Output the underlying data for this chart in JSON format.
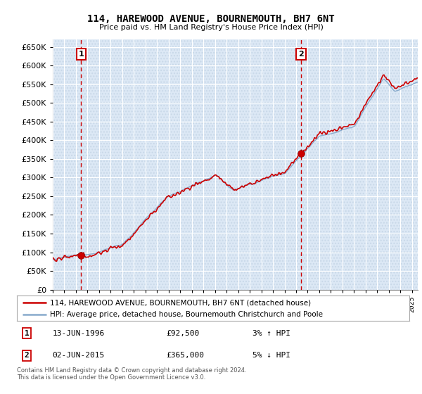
{
  "title": "114, HAREWOOD AVENUE, BOURNEMOUTH, BH7 6NT",
  "subtitle": "Price paid vs. HM Land Registry's House Price Index (HPI)",
  "ytick_values": [
    0,
    50000,
    100000,
    150000,
    200000,
    250000,
    300000,
    350000,
    400000,
    450000,
    500000,
    550000,
    600000,
    650000
  ],
  "ylim": [
    0,
    670000
  ],
  "xlim": [
    1994.0,
    2025.5
  ],
  "sale1": {
    "date_idx": 1996.45,
    "price": 92500,
    "label": "1"
  },
  "sale2": {
    "date_idx": 2015.42,
    "price": 365000,
    "label": "2"
  },
  "legend_line1": "114, HAREWOOD AVENUE, BOURNEMOUTH, BH7 6NT (detached house)",
  "legend_line2": "HPI: Average price, detached house, Bournemouth Christchurch and Poole",
  "table_row1": [
    "1",
    "13-JUN-1996",
    "£92,500",
    "3% ↑ HPI"
  ],
  "table_row2": [
    "2",
    "02-JUN-2015",
    "£365,000",
    "5% ↓ HPI"
  ],
  "footer": "Contains HM Land Registry data © Crown copyright and database right 2024.\nThis data is licensed under the Open Government Licence v3.0.",
  "line_color_red": "#cc0000",
  "line_color_blue": "#88aacc",
  "bg_blue": "#dce8f5",
  "grid_color": "#bbccdd",
  "hatch_color": "#c8d8e8"
}
